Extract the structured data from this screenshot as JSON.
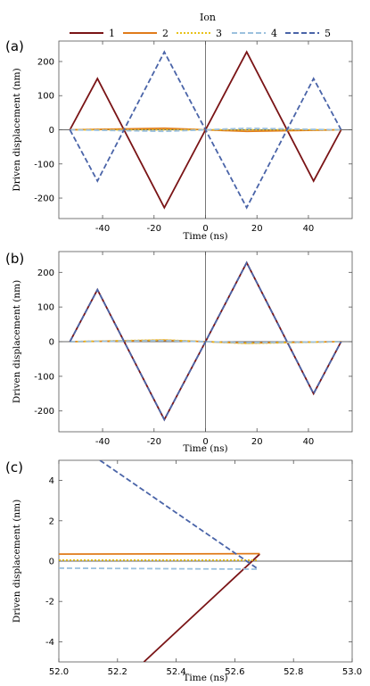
{
  "legend": {
    "title": "Ion",
    "entries": [
      "1",
      "2",
      "3",
      "4",
      "5"
    ]
  },
  "series_styles": [
    {
      "color": "#7a1416",
      "dash": "solid"
    },
    {
      "color": "#e07b1a",
      "dash": "solid"
    },
    {
      "color": "#e8c21a",
      "dash": "dotted"
    },
    {
      "color": "#9cc1de",
      "dash": "dashed"
    },
    {
      "color": "#4a64a8",
      "dash": "dashed"
    }
  ],
  "chart_data": [
    {
      "panel_label": "(a)",
      "type": "line",
      "xlabel": "Time (ns)",
      "ylabel": "Driven displacement (nm)",
      "xlim": [
        -57,
        57
      ],
      "ylim": [
        -260,
        260
      ],
      "xticks": [
        -40,
        -20,
        0,
        20,
        40
      ],
      "yticks": [
        -200,
        -100,
        0,
        100,
        200
      ],
      "series": [
        {
          "x": [
            -52.7,
            -42,
            -16,
            0,
            16,
            42,
            52.7
          ],
          "y": [
            0,
            150,
            -228,
            0,
            228,
            -150,
            0
          ]
        },
        {
          "x": [
            -52.7,
            -42,
            -16,
            0,
            16,
            42,
            52.7
          ],
          "y": [
            0,
            1.2,
            4.5,
            0,
            -4.5,
            -1.2,
            0
          ]
        },
        {
          "x": [
            -52.7,
            -42,
            -16,
            0,
            16,
            42,
            52.7
          ],
          "y": [
            0,
            0,
            0,
            0,
            0,
            0,
            0
          ]
        },
        {
          "x": [
            -52.7,
            -42,
            -16,
            0,
            16,
            42,
            52.7
          ],
          "y": [
            0,
            -1.2,
            -4.5,
            0,
            4.5,
            1.2,
            0
          ]
        },
        {
          "x": [
            -52.7,
            -42,
            -16,
            0,
            16,
            42,
            52.7
          ],
          "y": [
            0,
            -150,
            228,
            0,
            -228,
            150,
            0
          ]
        }
      ]
    },
    {
      "panel_label": "(b)",
      "type": "line",
      "xlabel": "Time (ns)",
      "ylabel": "Driven displacement (nm)",
      "xlim": [
        -57,
        57
      ],
      "ylim": [
        -260,
        260
      ],
      "xticks": [
        -40,
        -20,
        0,
        20,
        40
      ],
      "yticks": [
        -200,
        -100,
        0,
        100,
        200
      ],
      "series": [
        {
          "x": [
            -52.7,
            -42,
            -16,
            0,
            16,
            42,
            52.7
          ],
          "y": [
            0,
            150,
            -225,
            0,
            228,
            -150,
            0
          ]
        },
        {
          "x": [
            -52.7,
            -42,
            -16,
            0,
            16,
            42,
            52.7
          ],
          "y": [
            0,
            1,
            4,
            0,
            -4,
            -1,
            0
          ]
        },
        {
          "x": [
            -52.7,
            -42,
            -16,
            0,
            16,
            42,
            52.7
          ],
          "y": [
            0,
            1.5,
            5,
            0,
            -5,
            -1.5,
            0
          ]
        },
        {
          "x": [
            -52.7,
            -42,
            -16,
            0,
            16,
            42,
            52.7
          ],
          "y": [
            0,
            1,
            3,
            0,
            -3,
            -1,
            0
          ]
        },
        {
          "x": [
            -52.7,
            -42,
            -16,
            0,
            16,
            42,
            52.7
          ],
          "y": [
            0,
            150,
            -225,
            0,
            228,
            -150,
            0
          ]
        }
      ]
    },
    {
      "panel_label": "(c)",
      "type": "line",
      "xlabel": "Time (ns)",
      "ylabel": "Driven displacement (nm)",
      "xlim": [
        52.0,
        53.0
      ],
      "ylim": [
        -5,
        5
      ],
      "xticks": [
        52.0,
        52.2,
        52.4,
        52.6,
        52.8,
        53.0
      ],
      "yticks": [
        -4,
        -2,
        0,
        2,
        4
      ],
      "tick_decimals": 1,
      "series": [
        {
          "x": [
            52.29,
            52.685
          ],
          "y": [
            -5,
            0.35
          ]
        },
        {
          "x": [
            52.0,
            52.685
          ],
          "y": [
            0.35,
            0.37
          ]
        },
        {
          "x": [
            52.0,
            52.68
          ],
          "y": [
            0.05,
            0.05
          ]
        },
        {
          "x": [
            52.0,
            52.68
          ],
          "y": [
            -0.35,
            -0.4
          ]
        },
        {
          "x": [
            52.14,
            52.68
          ],
          "y": [
            5,
            -0.4
          ]
        }
      ]
    }
  ]
}
